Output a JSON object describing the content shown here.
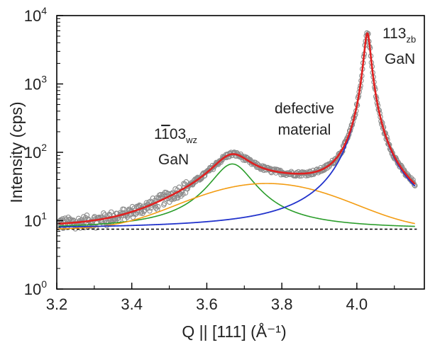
{
  "chart_data": {
    "type": "scatter",
    "xlabel": "Q || [111] (Å⁻¹)",
    "ylabel": "Intensity (cps)",
    "x_range": [
      3.2,
      4.18
    ],
    "y_range_log10": [
      0,
      4
    ],
    "y_scale": "log",
    "x_ticks": [
      "3.2",
      "3.4",
      "3.6",
      "3.8",
      "4.0"
    ],
    "y_ticks": [
      {
        "base": "10",
        "exp": "0"
      },
      {
        "base": "10",
        "exp": "1"
      },
      {
        "base": "10",
        "exp": "2"
      },
      {
        "base": "10",
        "exp": "3"
      },
      {
        "base": "10",
        "exp": "4"
      }
    ],
    "grid": false,
    "annotations": {
      "wz_main": "1",
      "wz_bar": "1",
      "wz_rest": "03",
      "wz_sub": "wz",
      "wz_material": "GaN",
      "defect_line1": "defective",
      "defect_line2": "material",
      "zb_main": "113",
      "zb_sub": "zb",
      "zb_material": "GaN"
    },
    "background_level": 7.5,
    "components": [
      {
        "color": "#2a9d2a",
        "shape": "lorentzian",
        "center": 3.668,
        "amplitude": 60,
        "hwhm": 0.055
      },
      {
        "color": "#f39c12",
        "shape": "gaussian",
        "center": 3.76,
        "amplitude": 27.5,
        "sigma": 0.165
      },
      {
        "color": "#2233cc",
        "shape": "lorentzian",
        "center": 4.028,
        "amplitude": 5500,
        "hwhm": 0.0085
      }
    ],
    "total_fit": {
      "color": "#e02020"
    },
    "measured": {
      "color": "#8c8c8c",
      "x_start": 3.2,
      "x_end": 4.155,
      "sample_points": [
        {
          "x": 3.2,
          "y": 8.2
        },
        {
          "x": 3.3,
          "y": 9.0
        },
        {
          "x": 3.4,
          "y": 11.5
        },
        {
          "x": 3.5,
          "y": 19
        },
        {
          "x": 3.6,
          "y": 60
        },
        {
          "x": 3.67,
          "y": 95
        },
        {
          "x": 3.75,
          "y": 70
        },
        {
          "x": 3.85,
          "y": 45
        },
        {
          "x": 3.95,
          "y": 50
        },
        {
          "x": 4.0,
          "y": 170
        },
        {
          "x": 4.028,
          "y": 5600
        },
        {
          "x": 4.08,
          "y": 120
        },
        {
          "x": 4.15,
          "y": 15
        }
      ]
    }
  }
}
